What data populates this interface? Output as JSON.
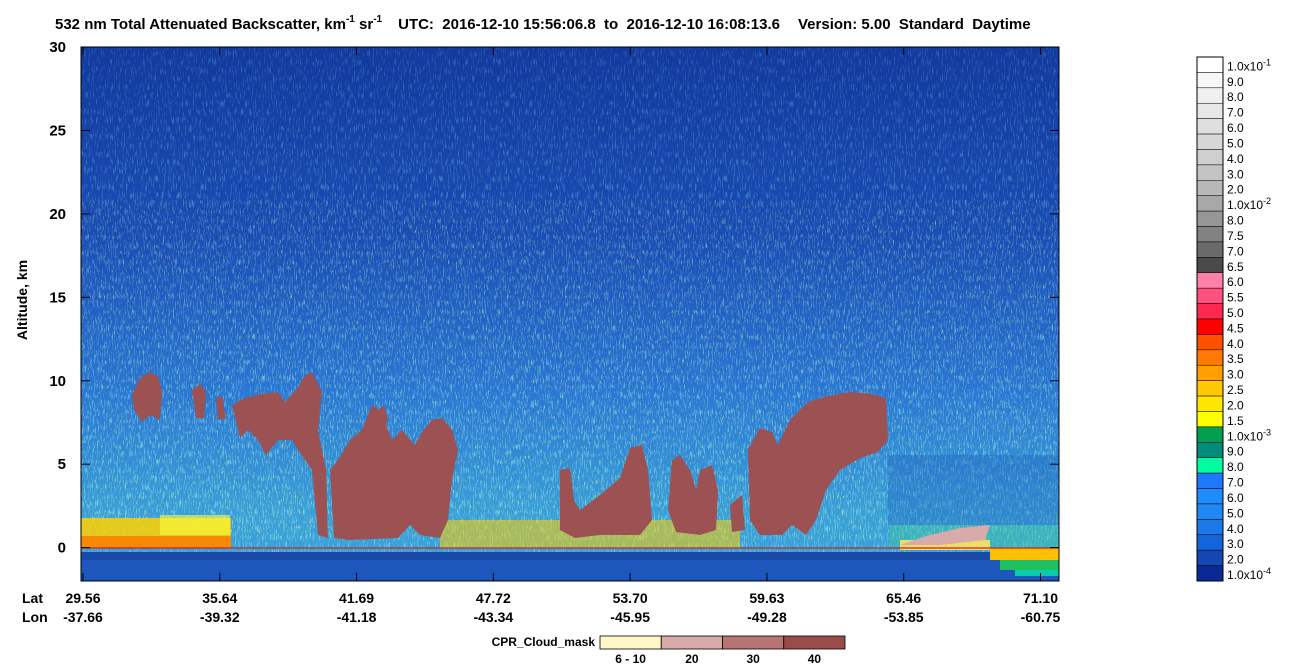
{
  "chart_data": {
    "type": "heatmap",
    "title": {
      "main": "532 nm Total Attenuated Backscatter, km",
      "sup1": "-1",
      "unit2": " sr",
      "sup2": "-1",
      "utc": "UTC:  2016-12-10 15:56:06.8  to  2016-12-10 16:08:13.6",
      "version": "Version: 5.00  Standard  Daytime"
    },
    "y_label": "Altitude, km",
    "ylim": [
      -2,
      30
    ],
    "yticks": [
      0,
      5,
      10,
      15,
      20,
      25,
      30
    ],
    "x_row_labels": [
      "Lat",
      "Lon"
    ],
    "lat": [
      "29.56",
      "35.64",
      "41.69",
      "47.72",
      "53.70",
      "59.63",
      "65.46",
      "71.10"
    ],
    "lon": [
      "-37.66",
      "-39.32",
      "-41.18",
      "-43.34",
      "-45.95",
      "-49.28",
      "-53.85",
      "-60.75"
    ],
    "colorbar": [
      {
        "label": "1.0x10",
        "exp": "-1",
        "color": "#ffffff"
      },
      {
        "label": "9.0",
        "color": "#f7f7f7"
      },
      {
        "label": "8.0",
        "color": "#efefef"
      },
      {
        "label": "7.0",
        "color": "#e7e7e7"
      },
      {
        "label": "6.0",
        "color": "#dfdfdf"
      },
      {
        "label": "5.0",
        "color": "#d7d7d7"
      },
      {
        "label": "4.0",
        "color": "#cfcfcf"
      },
      {
        "label": "3.0",
        "color": "#c4c4c4"
      },
      {
        "label": "2.0",
        "color": "#b8b8b8"
      },
      {
        "label": "1.0x10",
        "exp": "-2",
        "color": "#a8a8a8"
      },
      {
        "label": "8.0",
        "color": "#969696"
      },
      {
        "label": "7.5",
        "color": "#828282"
      },
      {
        "label": "7.0",
        "color": "#6a6a6a"
      },
      {
        "label": "6.5",
        "color": "#4a4a4a"
      },
      {
        "label": "6.0",
        "color": "#ff80a8"
      },
      {
        "label": "5.5",
        "color": "#ff5080"
      },
      {
        "label": "5.0",
        "color": "#ff2850"
      },
      {
        "label": "4.5",
        "color": "#ff0000"
      },
      {
        "label": "4.0",
        "color": "#ff5000"
      },
      {
        "label": "3.5",
        "color": "#ff7800"
      },
      {
        "label": "3.0",
        "color": "#ffa000"
      },
      {
        "label": "2.5",
        "color": "#ffc800"
      },
      {
        "label": "2.0",
        "color": "#ffe600"
      },
      {
        "label": "1.5",
        "color": "#ffff00"
      },
      {
        "label": "1.0x10",
        "exp": "-3",
        "color": "#00a050"
      },
      {
        "label": "9.0",
        "color": "#008c78"
      },
      {
        "label": "8.0",
        "color": "#00ffa0"
      },
      {
        "label": "7.0",
        "color": "#1e78ff"
      },
      {
        "label": "6.0",
        "color": "#1e8cff"
      },
      {
        "label": "5.0",
        "color": "#2088f4"
      },
      {
        "label": "4.0",
        "color": "#1a78e8"
      },
      {
        "label": "3.0",
        "color": "#1464dc"
      },
      {
        "label": "2.0",
        "color": "#1446b4"
      },
      {
        "label": "1.0x10",
        "exp": "-4",
        "color": "#0a2896"
      }
    ],
    "cloud_mask": {
      "title": "CPR_Cloud_mask",
      "items": [
        {
          "label": "6 - 10",
          "color": "#fdf8c6"
        },
        {
          "label": "20",
          "color": "#d9aaaa"
        },
        {
          "label": "30",
          "color": "#b87474"
        },
        {
          "label": "40",
          "color": "#9a4c4c"
        }
      ]
    }
  }
}
